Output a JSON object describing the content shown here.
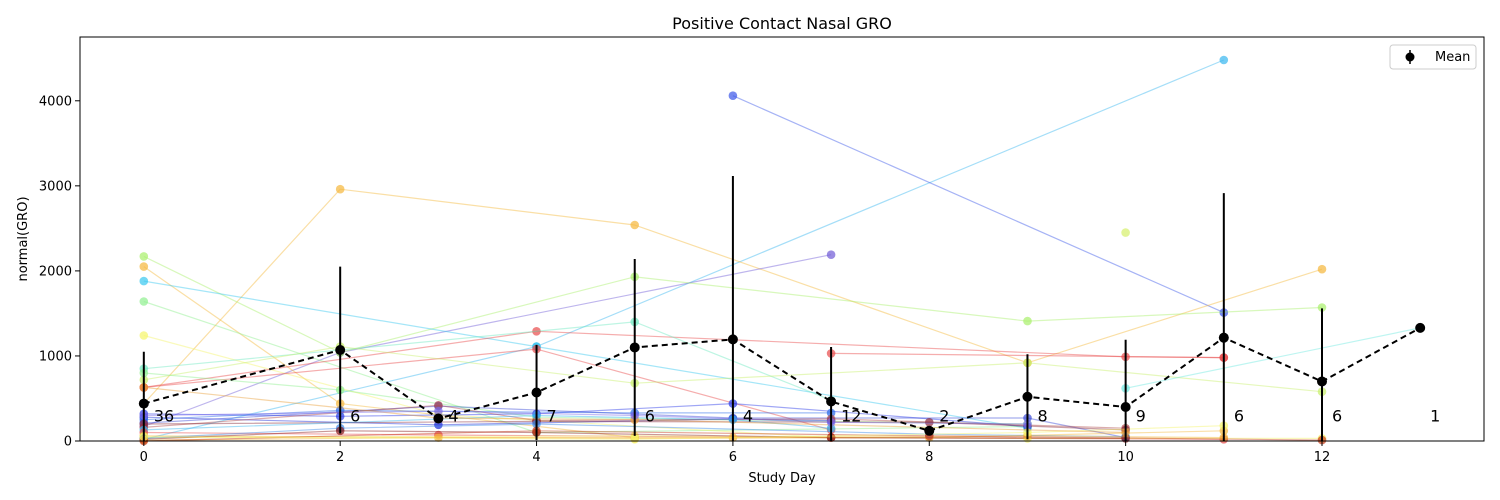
{
  "chart_data": {
    "type": "line",
    "title": "Positive Contact Nasal GRO",
    "xlabel": "Study Day",
    "ylabel": "normal(GRO)",
    "xlim": [
      -0.65,
      13.65
    ],
    "ylim": [
      0,
      4750
    ],
    "xticks": [
      0,
      2,
      4,
      6,
      8,
      10,
      12
    ],
    "yticks": [
      0,
      1000,
      2000,
      3000,
      4000
    ],
    "grid": false,
    "legend": {
      "position": "top-right",
      "entries": [
        "Mean"
      ]
    },
    "mean": {
      "name": "Mean",
      "color": "#000000",
      "points": [
        {
          "x": 0,
          "y": 440,
          "err": 610
        },
        {
          "x": 2,
          "y": 1070,
          "err": 980
        },
        {
          "x": 3,
          "y": 265,
          "err": 0
        },
        {
          "x": 4,
          "y": 570,
          "err": 560
        },
        {
          "x": 5,
          "y": 1100,
          "err": 1040
        },
        {
          "x": 6,
          "y": 1195,
          "err": 1920
        },
        {
          "x": 7,
          "y": 465,
          "err": 640
        },
        {
          "x": 8,
          "y": 120,
          "err": 0
        },
        {
          "x": 9,
          "y": 520,
          "err": 500
        },
        {
          "x": 10,
          "y": 400,
          "err": 790
        },
        {
          "x": 11,
          "y": 1215,
          "err": 1700
        },
        {
          "x": 12,
          "y": 700,
          "err": 860
        },
        {
          "x": 13,
          "y": 1330,
          "err": 0
        }
      ]
    },
    "counts": [
      {
        "x": 0,
        "label": "36"
      },
      {
        "x": 2,
        "label": "6"
      },
      {
        "x": 3,
        "label": "4"
      },
      {
        "x": 4,
        "label": "7"
      },
      {
        "x": 5,
        "label": "6"
      },
      {
        "x": 6,
        "label": "4"
      },
      {
        "x": 7,
        "label": "12"
      },
      {
        "x": 8,
        "label": "2"
      },
      {
        "x": 9,
        "label": "8"
      },
      {
        "x": 10,
        "label": "9"
      },
      {
        "x": 11,
        "label": "6"
      },
      {
        "x": 12,
        "label": "6"
      },
      {
        "x": 13,
        "label": "1"
      }
    ],
    "count_label_y": 300,
    "subjects": [
      {
        "color": "#38b6f0",
        "points": [
          [
            0,
            20
          ],
          [
            4,
            1110
          ],
          [
            11,
            4480
          ]
        ]
      },
      {
        "color": "#3a56e8",
        "points": [
          [
            6,
            4060
          ],
          [
            11,
            1510
          ]
        ]
      },
      {
        "color": "#f5b73a",
        "points": [
          [
            0,
            440
          ],
          [
            2,
            2960
          ],
          [
            5,
            2540
          ],
          [
            9,
            920
          ],
          [
            12,
            2020
          ]
        ]
      },
      {
        "color": "#6f5ad6",
        "points": [
          [
            0,
            170
          ],
          [
            2,
            1040
          ],
          [
            7,
            2190
          ]
        ]
      },
      {
        "color": "#a8ef6a",
        "points": [
          [
            0,
            2170
          ],
          [
            2,
            1040
          ],
          [
            5,
            1930
          ],
          [
            9,
            1410
          ],
          [
            12,
            1570
          ]
        ]
      },
      {
        "color": "#f5b73a",
        "points": [
          [
            0,
            2050
          ],
          [
            2,
            440
          ],
          [
            5,
            40
          ]
        ]
      },
      {
        "color": "#38c8f0",
        "points": [
          [
            0,
            1880
          ],
          [
            4,
            1110
          ],
          [
            9,
            150
          ]
        ]
      },
      {
        "color": "#8ff08f",
        "points": [
          [
            0,
            1640
          ],
          [
            4,
            100
          ],
          [
            9,
            170
          ]
        ]
      },
      {
        "color": "#f5f56a",
        "points": [
          [
            0,
            1240
          ],
          [
            3,
            310
          ],
          [
            7,
            40
          ]
        ]
      },
      {
        "color": "#e84a4a",
        "points": [
          [
            0,
            630
          ],
          [
            4,
            1290
          ],
          [
            10,
            990
          ],
          [
            11,
            980
          ]
        ]
      },
      {
        "color": "#e84a4a",
        "points": [
          [
            0,
            630
          ],
          [
            4,
            1080
          ],
          [
            7,
            130
          ]
        ]
      },
      {
        "color": "#6ee8c0",
        "points": [
          [
            0,
            850
          ],
          [
            5,
            1400
          ],
          [
            7,
            480
          ]
        ]
      },
      {
        "color": "#c8f06a",
        "points": [
          [
            0,
            720
          ],
          [
            2,
            1110
          ],
          [
            5,
            680
          ],
          [
            9,
            920
          ],
          [
            12,
            580
          ]
        ]
      },
      {
        "color": "#8ff08f",
        "points": [
          [
            0,
            800
          ],
          [
            2,
            600
          ],
          [
            4,
            280
          ],
          [
            9,
            200
          ]
        ]
      },
      {
        "color": "#6ee8e0",
        "points": [
          [
            10,
            620
          ],
          [
            13,
            1330
          ]
        ]
      },
      {
        "color": "#d6f06a",
        "points": [
          [
            10,
            2450
          ]
        ]
      },
      {
        "color": "#e84a4a",
        "points": [
          [
            7,
            1030
          ],
          [
            11,
            980
          ]
        ]
      },
      {
        "color": "#2a3ae8",
        "points": [
          [
            0,
            320
          ],
          [
            2,
            290
          ],
          [
            4,
            320
          ],
          [
            6,
            440
          ],
          [
            9,
            170
          ]
        ]
      },
      {
        "color": "#1a2ad6",
        "points": [
          [
            0,
            280
          ],
          [
            3,
            190
          ],
          [
            6,
            260
          ],
          [
            7,
            240
          ]
        ]
      },
      {
        "color": "#2a6ae8",
        "points": [
          [
            0,
            250
          ],
          [
            2,
            360
          ],
          [
            5,
            330
          ],
          [
            7,
            330
          ]
        ]
      },
      {
        "color": "#3a4ad6",
        "points": [
          [
            0,
            210
          ],
          [
            3,
            410
          ],
          [
            6,
            270
          ],
          [
            9,
            270
          ],
          [
            10,
            40
          ]
        ]
      },
      {
        "color": "#b04a4a",
        "points": [
          [
            0,
            160
          ],
          [
            3,
            420
          ],
          [
            4,
            240
          ],
          [
            7,
            260
          ],
          [
            10,
            150
          ]
        ]
      },
      {
        "color": "#8a2a3a",
        "points": [
          [
            0,
            200
          ],
          [
            4,
            230
          ],
          [
            8,
            220
          ],
          [
            10,
            130
          ]
        ]
      },
      {
        "color": "#38b6f0",
        "points": [
          [
            0,
            130
          ],
          [
            4,
            300
          ],
          [
            6,
            250
          ],
          [
            7,
            150
          ]
        ]
      },
      {
        "color": "#e84a4a",
        "points": [
          [
            0,
            100
          ],
          [
            3,
            70
          ],
          [
            7,
            40
          ],
          [
            11,
            20
          ]
        ]
      },
      {
        "color": "#f5b73a",
        "points": [
          [
            0,
            60
          ],
          [
            5,
            30
          ],
          [
            8,
            40
          ],
          [
            11,
            120
          ]
        ]
      },
      {
        "color": "#f5f56a",
        "points": [
          [
            0,
            40
          ],
          [
            5,
            60
          ],
          [
            9,
            30
          ],
          [
            12,
            30
          ]
        ]
      },
      {
        "color": "#3a8ae8",
        "points": [
          [
            0,
            30
          ],
          [
            2,
            150
          ],
          [
            4,
            200
          ],
          [
            8,
            80
          ],
          [
            10,
            50
          ]
        ]
      },
      {
        "color": "#8a1a1a",
        "points": [
          [
            0,
            20
          ],
          [
            2,
            120
          ],
          [
            4,
            100
          ],
          [
            7,
            40
          ],
          [
            10,
            30
          ]
        ]
      },
      {
        "color": "#f5b73a",
        "points": [
          [
            0,
            10
          ],
          [
            3,
            40
          ],
          [
            6,
            40
          ],
          [
            9,
            60
          ],
          [
            11,
            40
          ]
        ]
      },
      {
        "color": "#c83a1a",
        "points": [
          [
            0,
            0
          ],
          [
            4,
            120
          ],
          [
            8,
            60
          ],
          [
            12,
            10
          ]
        ]
      },
      {
        "color": "#f5f56a",
        "points": [
          [
            0,
            50
          ],
          [
            5,
            20
          ],
          [
            9,
            100
          ],
          [
            11,
            180
          ]
        ]
      },
      {
        "color": "#e8a03a",
        "points": [
          [
            0,
            630
          ],
          [
            3,
            270
          ],
          [
            5,
            250
          ],
          [
            10,
            100
          ]
        ]
      },
      {
        "color": "#7a6ae8",
        "points": [
          [
            0,
            300
          ],
          [
            3,
            350
          ],
          [
            5,
            300
          ],
          [
            7,
            220
          ],
          [
            9,
            200
          ]
        ]
      }
    ]
  }
}
